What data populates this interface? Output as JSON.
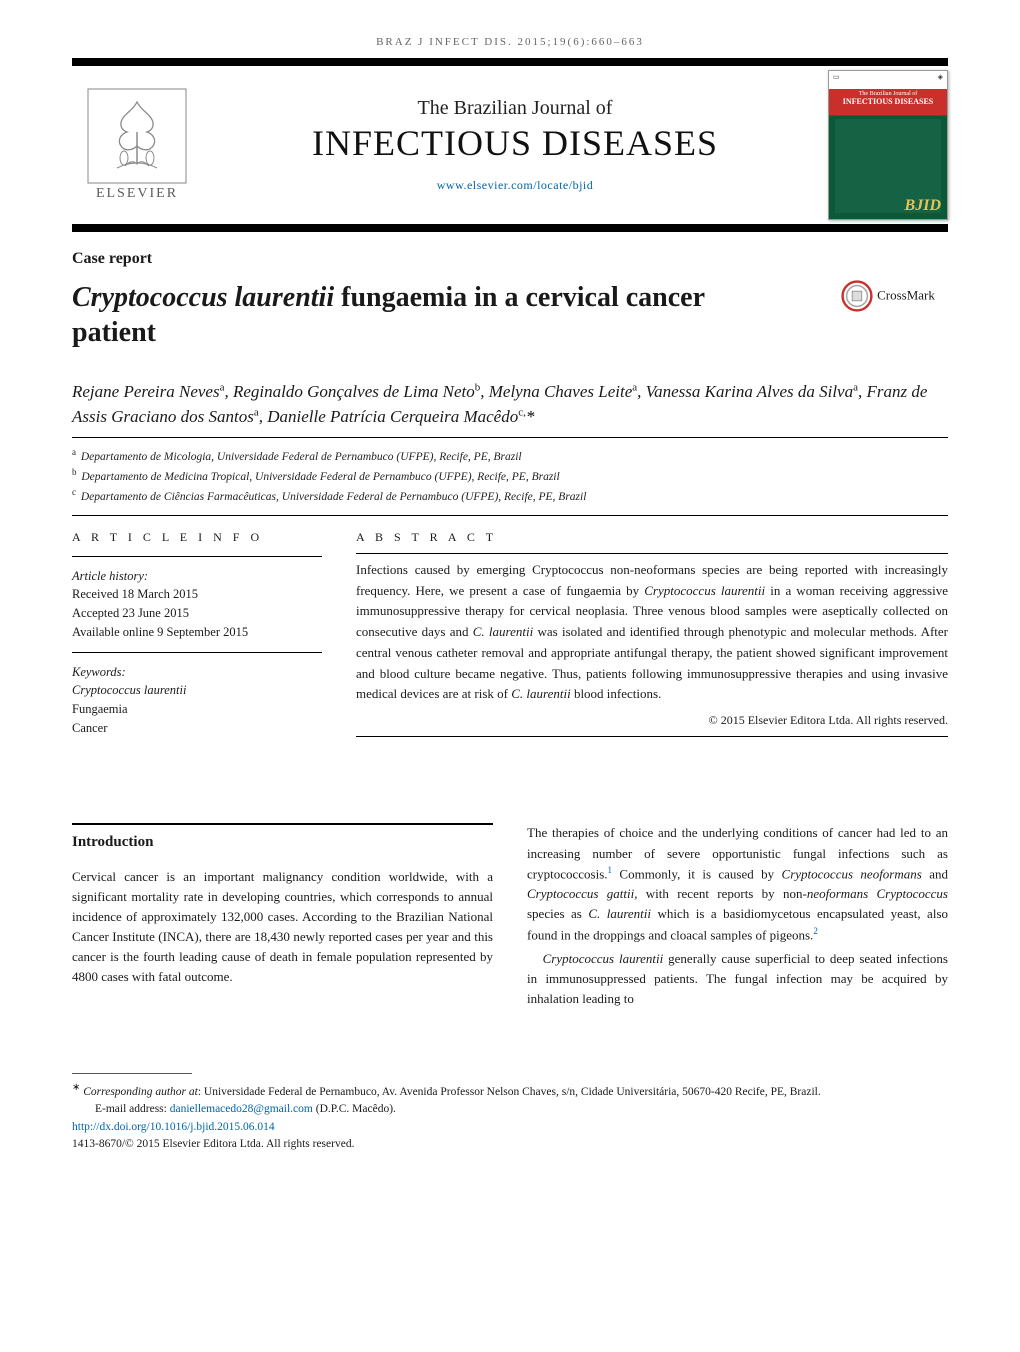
{
  "running_head": "BRAZ J INFECT DIS. 2015;19(6):660–663",
  "masthead": {
    "journal_super": "The Brazilian Journal of",
    "journal_title": "INFECTIOUS DISEASES",
    "url": "www.elsevier.com/locate/bjid",
    "publisher_word": "ELSEVIER",
    "cover": {
      "top_left": "▭",
      "top_right": "◈",
      "title_small": "The Brazilian Journal of",
      "title": "INFECTIOUS DISEASES",
      "bid": "BJID"
    }
  },
  "section_label": "Case report",
  "article_title_italic": "Cryptococcus laurentii",
  "article_title_rest": " fungaemia in a cervical cancer patient",
  "crossmark_label": "CrossMark",
  "authors_html": "Rejane Pereira Neves<sup>a</sup>, Reginaldo Gonçalves de Lima Neto<sup>b</sup>, Melyna Chaves Leite<sup>a</sup>, Vanessa Karina Alves da Silva<sup>a</sup>, Franz de Assis Graciano dos Santos<sup>a</sup>, Danielle Patrícia Cerqueira Macêdo<sup>c,</sup><span class='corr'>*</span>",
  "affiliations": [
    {
      "sup": "a",
      "text": "Departamento de Micologia, Universidade Federal de Pernambuco (UFPE), Recife, PE, Brazil"
    },
    {
      "sup": "b",
      "text": "Departamento de Medicina Tropical, Universidade Federal de Pernambuco (UFPE), Recife, PE, Brazil"
    },
    {
      "sup": "c",
      "text": "Departamento de Ciências Farmacêuticas, Universidade Federal de Pernambuco (UFPE), Recife, PE, Brazil"
    }
  ],
  "article_info": {
    "heading": "A R T I C L E   I N F O",
    "history_label": "Article history:",
    "received": "Received 18 March 2015",
    "accepted": "Accepted 23 June 2015",
    "online": "Available online 9 September 2015",
    "kw_label": "Keywords:",
    "keywords": [
      {
        "text": "Cryptococcus laurentii",
        "italic": true
      },
      {
        "text": "Fungaemia",
        "italic": false
      },
      {
        "text": "Cancer",
        "italic": false
      }
    ]
  },
  "abstract": {
    "heading": "A B S T R A C T",
    "text_html": "Infections caused by emerging Cryptococcus non-neoformans species are being reported with increasingly frequency. Here, we present a case of fungaemia by <em>Cryptococcus laurentii</em> in a woman receiving aggressive immunosuppressive therapy for cervical neoplasia. Three venous blood samples were aseptically collected on consecutive days and <em>C. laurentii</em> was isolated and identified through phenotypic and molecular methods. After central venous catheter removal and appropriate antifungal therapy, the patient showed significant improvement and blood culture became negative. Thus, patients following immunosuppressive therapies and using invasive medical devices are at risk of <em>C. laurentii</em> blood infections.",
    "copyright": "© 2015 Elsevier Editora Ltda. All rights reserved."
  },
  "body": {
    "left": {
      "heading": "Introduction",
      "p1": "Cervical cancer is an important malignancy condition worldwide, with a significant mortality rate in developing countries, which corresponds to annual incidence of approximately 132,000 cases. According to the Brazilian National Cancer Institute (INCA), there are 18,430 newly reported cases per year and this cancer is the fourth leading cause of death in female population represented by 4800 cases with fatal outcome."
    },
    "right": {
      "p1_html": "The therapies of choice and the underlying conditions of cancer had led to an increasing number of severe opportunistic fungal infections such as cryptococcosis.<span class='cite'>1</span> Commonly, it is caused by <em>Cryptococcus neoformans</em> and <em>Cryptococcus gattii</em>, with recent reports by non-<em>neoformans Cryptococcus</em> species as <em>C. laurentii</em> which is a basidiomycetous encapsulated yeast, also found in the droppings and cloacal samples of pigeons.<span class='cite'>2</span>",
      "p2_html": "<em>Cryptococcus laurentii</em> generally cause superficial to deep seated infections in immunosuppressed patients. The fungal infection may be acquired by inhalation leading to"
    }
  },
  "footer": {
    "corr_html": "<span class='star'>∗</span> <em>Corresponding author at</em>: Universidade Federal de Pernambuco, Av. Avenida Professor Nelson Chaves, s/n, Cidade Universitária, 50670-420 Recife, PE, Brazil.",
    "email_label": "E-mail address: ",
    "email": "daniellemacedo28@gmail.com",
    "email_tail": " (D.P.C. Macêdo).",
    "doi": "http://dx.doi.org/10.1016/j.bjid.2015.06.014",
    "issn_line": "1413-8670/© 2015 Elsevier Editora Ltda. All rights reserved."
  },
  "colors": {
    "link": "#0066aa",
    "text": "#1a1a1a",
    "rule": "#000000",
    "cover_red": "#c9302c"
  },
  "typography": {
    "base_font": "Times New Roman",
    "title_pt": 28,
    "journal_pt": 36,
    "body_pt": 13,
    "footnote_pt": 11.5
  }
}
